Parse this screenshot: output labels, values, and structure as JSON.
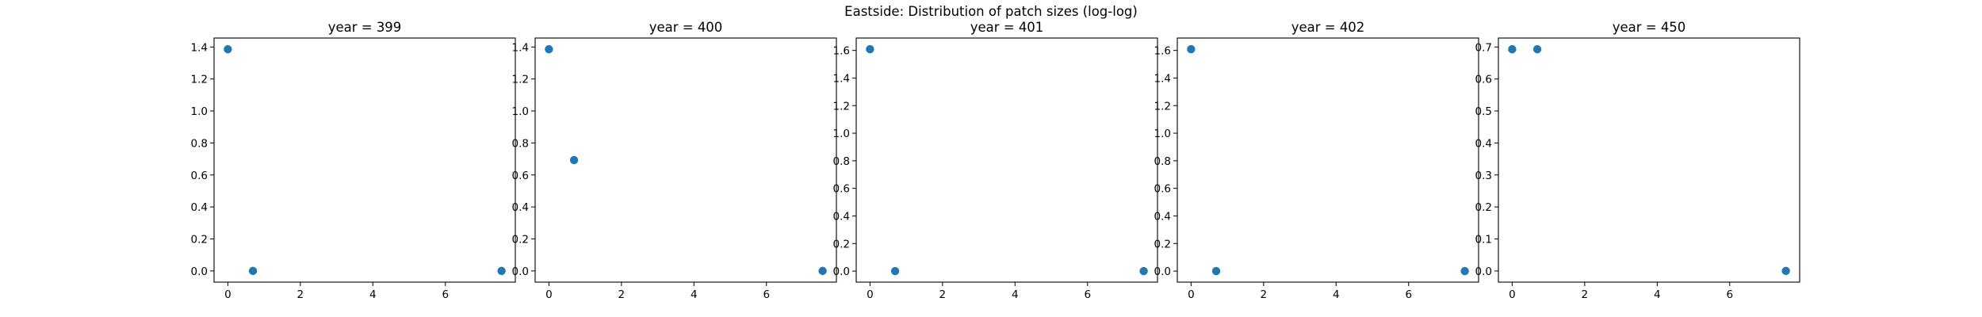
{
  "figure": {
    "suptitle": "Eastside: Distribution of patch sizes (log-log)",
    "marker_color": "#1f77b4"
  },
  "chart_data": [
    {
      "type": "scatter",
      "title": "year = 399",
      "x": [
        0,
        0.693,
        7.55
      ],
      "y": [
        1.386,
        0,
        0
      ],
      "xlim": [
        -0.38,
        7.93
      ],
      "ylim": [
        -0.07,
        1.456
      ],
      "xticks": [
        0,
        2,
        4,
        6
      ],
      "yticks": [
        0.0,
        0.2,
        0.4,
        0.6,
        0.8,
        1.0,
        1.2,
        1.4
      ],
      "xtick_labels": [
        "0",
        "2",
        "4",
        "6"
      ],
      "ytick_labels": [
        "0.0",
        "0.2",
        "0.4",
        "0.6",
        "0.8",
        "1.0",
        "1.2",
        "1.4"
      ]
    },
    {
      "type": "scatter",
      "title": "year = 400",
      "x": [
        0,
        0.693,
        7.55
      ],
      "y": [
        1.386,
        0.693,
        0
      ],
      "xlim": [
        -0.38,
        7.93
      ],
      "ylim": [
        -0.07,
        1.456
      ],
      "xticks": [
        0,
        2,
        4,
        6
      ],
      "yticks": [
        0.0,
        0.2,
        0.4,
        0.6,
        0.8,
        1.0,
        1.2,
        1.4
      ],
      "xtick_labels": [
        "0",
        "2",
        "4",
        "6"
      ],
      "ytick_labels": [
        "0.0",
        "0.2",
        "0.4",
        "0.6",
        "0.8",
        "1.0",
        "1.2",
        "1.4"
      ]
    },
    {
      "type": "scatter",
      "title": "year = 401",
      "x": [
        0,
        0.693,
        7.55
      ],
      "y": [
        1.609,
        0,
        0
      ],
      "xlim": [
        -0.38,
        7.93
      ],
      "ylim": [
        -0.08,
        1.69
      ],
      "xticks": [
        0,
        2,
        4,
        6
      ],
      "yticks": [
        0.0,
        0.2,
        0.4,
        0.6,
        0.8,
        1.0,
        1.2,
        1.4,
        1.6
      ],
      "xtick_labels": [
        "0",
        "2",
        "4",
        "6"
      ],
      "ytick_labels": [
        "0.0",
        "0.2",
        "0.4",
        "0.6",
        "0.8",
        "1.0",
        "1.2",
        "1.4",
        "1.6"
      ]
    },
    {
      "type": "scatter",
      "title": "year = 402",
      "x": [
        0,
        0.693,
        7.55
      ],
      "y": [
        1.609,
        0,
        0
      ],
      "xlim": [
        -0.38,
        7.93
      ],
      "ylim": [
        -0.08,
        1.69
      ],
      "xticks": [
        0,
        2,
        4,
        6
      ],
      "yticks": [
        0.0,
        0.2,
        0.4,
        0.6,
        0.8,
        1.0,
        1.2,
        1.4,
        1.6
      ],
      "xtick_labels": [
        "0",
        "2",
        "4",
        "6"
      ],
      "ytick_labels": [
        "0.0",
        "0.2",
        "0.4",
        "0.6",
        "0.8",
        "1.0",
        "1.2",
        "1.4",
        "1.6"
      ]
    },
    {
      "type": "scatter",
      "title": "year = 450",
      "x": [
        0,
        0.693,
        7.55
      ],
      "y": [
        0.693,
        0.693,
        0
      ],
      "xlim": [
        -0.38,
        7.93
      ],
      "ylim": [
        -0.035,
        0.728
      ],
      "xticks": [
        0,
        2,
        4,
        6
      ],
      "yticks": [
        0.0,
        0.1,
        0.2,
        0.3,
        0.4,
        0.5,
        0.6,
        0.7
      ],
      "xtick_labels": [
        "0",
        "2",
        "4",
        "6"
      ],
      "ytick_labels": [
        "0.0",
        "0.1",
        "0.2",
        "0.3",
        "0.4",
        "0.5",
        "0.6",
        "0.7"
      ]
    }
  ]
}
